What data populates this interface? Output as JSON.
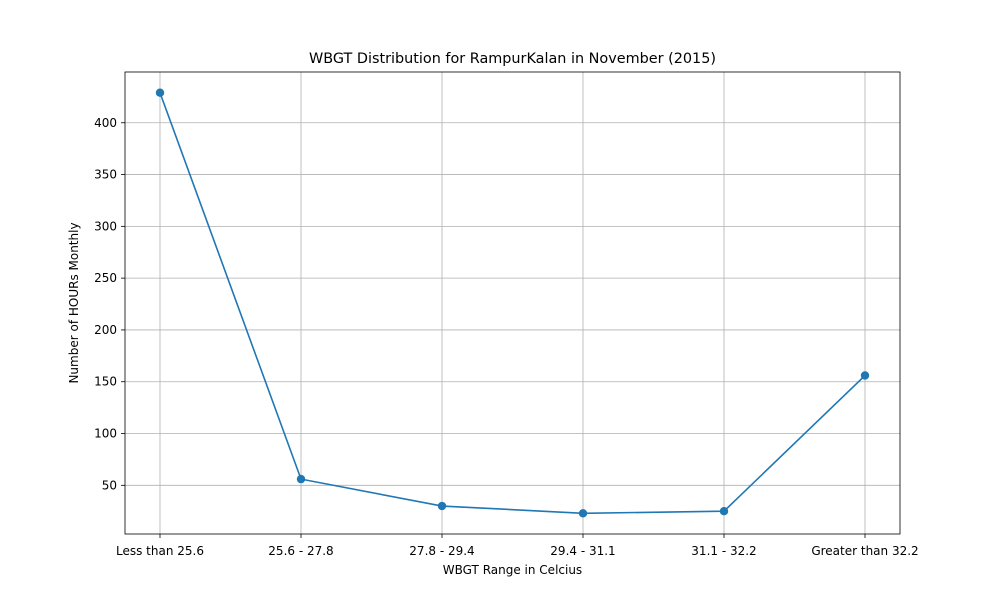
{
  "chart_data": {
    "type": "line",
    "title": "WBGT Distribution for RampurKalan in November (2015)",
    "xlabel": "WBGT Range in Celcius",
    "ylabel": "Number of HOURs Monthly",
    "categories": [
      "Less than 25.6",
      "25.6 - 27.8",
      "27.8 - 29.4",
      "29.4 - 31.1",
      "31.1 - 32.2",
      "Greater than 32.2"
    ],
    "series": [
      {
        "values": [
          429,
          56,
          30,
          23,
          25,
          156
        ]
      }
    ],
    "ylim": [
      3,
      449
    ],
    "yticks": [
      50,
      100,
      150,
      200,
      250,
      300,
      350,
      400
    ],
    "grid": true,
    "marker": "circle",
    "colors": {
      "line": "#1f77b4",
      "grid": "#b0b0b0"
    }
  }
}
